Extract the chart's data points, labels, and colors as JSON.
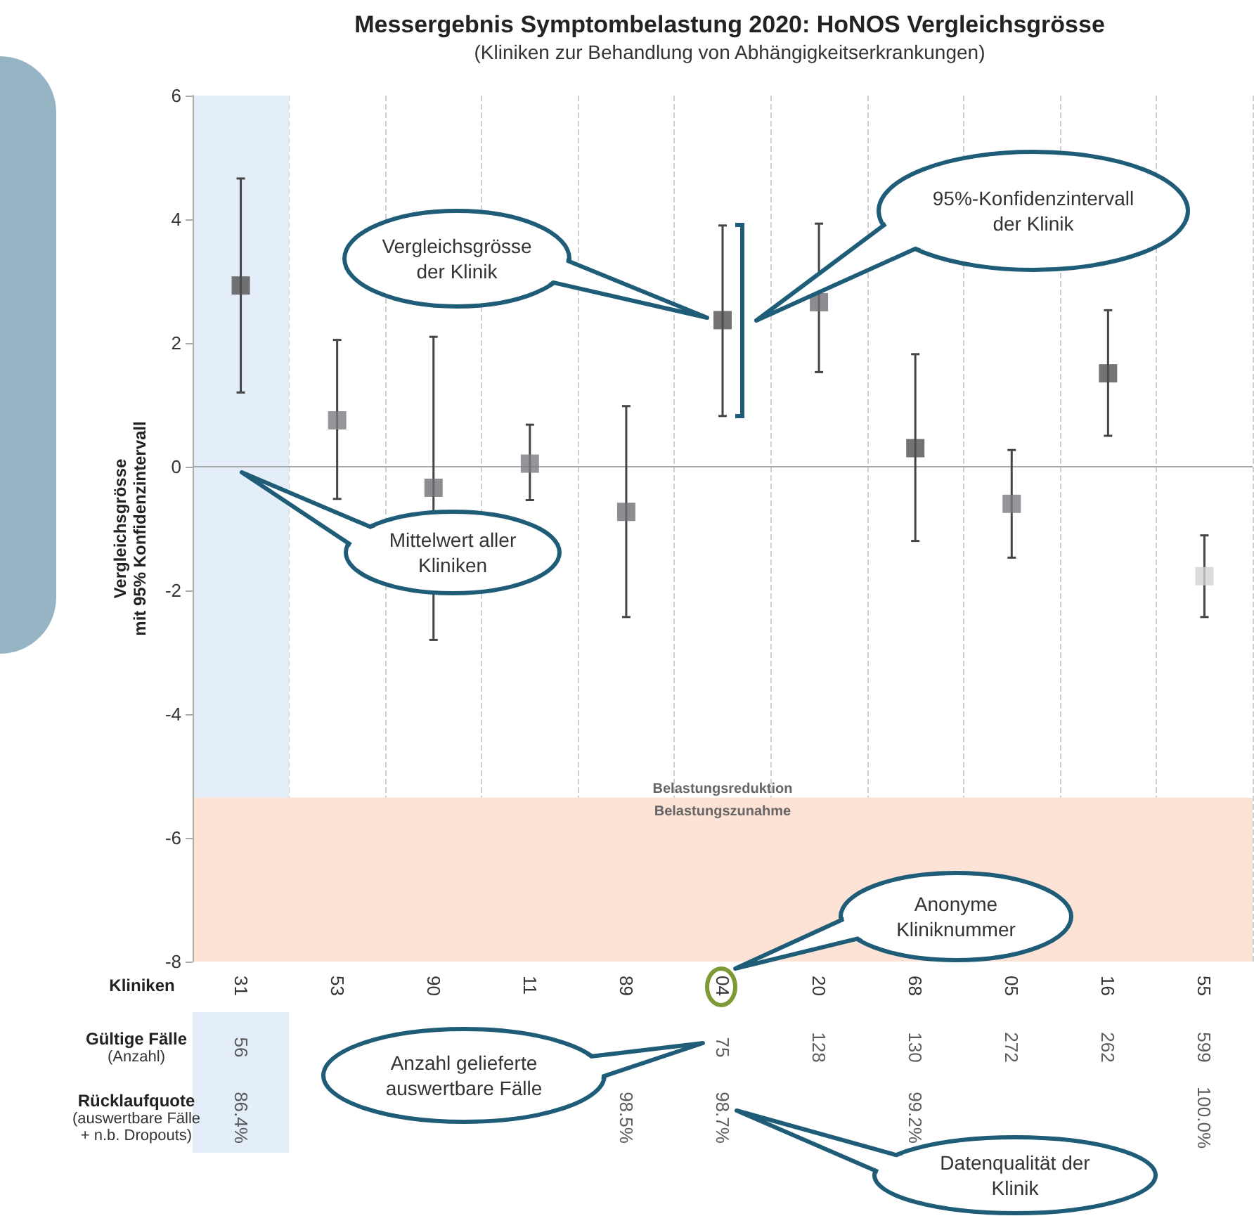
{
  "chart_data": [
    {
      "type": "scatter",
      "title": "Messergebnis Symptombelastung 2020: HoNOS Vergleichsgrösse",
      "subtitle": "(Kliniken zur Behandlung von Abhängigkeitserkrankungen)",
      "xlabel": "Kliniken",
      "ylabel": "Vergleichsgrösse\nmit 95% Konfidenzintervall",
      "categories": [
        "31",
        "53",
        "90",
        "11",
        "89",
        "04",
        "20",
        "68",
        "05",
        "16",
        "55"
      ],
      "values": [
        2.93,
        0.75,
        -0.34,
        0.05,
        -0.73,
        2.37,
        2.66,
        0.3,
        -0.6,
        1.51,
        -1.77
      ],
      "errors": [
        [
          1.2,
          4.66
        ],
        [
          -0.52,
          2.05
        ],
        [
          -2.8,
          2.1
        ],
        [
          -0.54,
          0.68
        ],
        [
          -2.43,
          0.98
        ],
        [
          0.82,
          3.9
        ],
        [
          1.53,
          3.93
        ],
        [
          -1.2,
          1.82
        ],
        [
          -1.47,
          0.27
        ],
        [
          0.5,
          2.53
        ],
        [
          -2.43,
          -1.11
        ]
      ],
      "colors": [
        "#505050",
        "#7b7b82",
        "#6f6f76",
        "#7b7b82",
        "#6f6f76",
        "#505050",
        "#6f6f76",
        "#505050",
        "#7b7b82",
        "#505050",
        "#d2d2d2"
      ],
      "marker": "square",
      "ylim": [
        -8,
        6
      ],
      "yticks": [
        -8,
        -6,
        -4,
        -2,
        0,
        2,
        4,
        6
      ],
      "grid": "x",
      "ref_lines": [
        {
          "axis": "y",
          "value": 0,
          "color": "#a8a8a8"
        }
      ],
      "bands": [
        {
          "axis": "x",
          "from": "31",
          "to": "31",
          "color": "#e4eef9"
        },
        {
          "axis": "y",
          "from": -8,
          "to": -5.35,
          "color": "#fde3d5",
          "label": "Belastungszunahme"
        }
      ],
      "annotations": [
        "Vergleichsgrösse der Klinik",
        "95%-Konfidenzintervall der Klinik",
        "Mittelwert aller Kliniken",
        "Anonyme Kliniknummer",
        "Belastungsreduktion"
      ]
    },
    {
      "type": "heatmap",
      "categories": [
        "31",
        "53",
        "90",
        "11",
        "89",
        "04",
        "20",
        "68",
        "05",
        "16",
        "55"
      ],
      "y_categories": [
        "Gültige Fälle\n(Anzahl)",
        "Rücklaufquote\n(auswertbare Fälle\n+ n.b. Dropouts)"
      ],
      "cells": [
        [
          56,
          null,
          null,
          null,
          null,
          75,
          128,
          130,
          272,
          262,
          599
        ],
        [
          86.4,
          null,
          null,
          null,
          98.5,
          98.7,
          null,
          99.2,
          null,
          null,
          100.0
        ]
      ],
      "cell_labels": [
        [
          "56",
          null,
          null,
          null,
          null,
          "75",
          "128",
          "130",
          "272",
          "262",
          "599"
        ],
        [
          "86.4%",
          null,
          null,
          null,
          "98.5%",
          "98.7%",
          null,
          "99.2%",
          null,
          null,
          "100.0%"
        ]
      ],
      "tick_labels": "y",
      "bands": [
        {
          "axis": "x",
          "from": "31",
          "to": "31",
          "color": "#e4eef9"
        }
      ],
      "annotations": [
        "Anzahl gelieferte auswertbare Fälle",
        "Datenqualität der Klinik"
      ]
    }
  ]
}
